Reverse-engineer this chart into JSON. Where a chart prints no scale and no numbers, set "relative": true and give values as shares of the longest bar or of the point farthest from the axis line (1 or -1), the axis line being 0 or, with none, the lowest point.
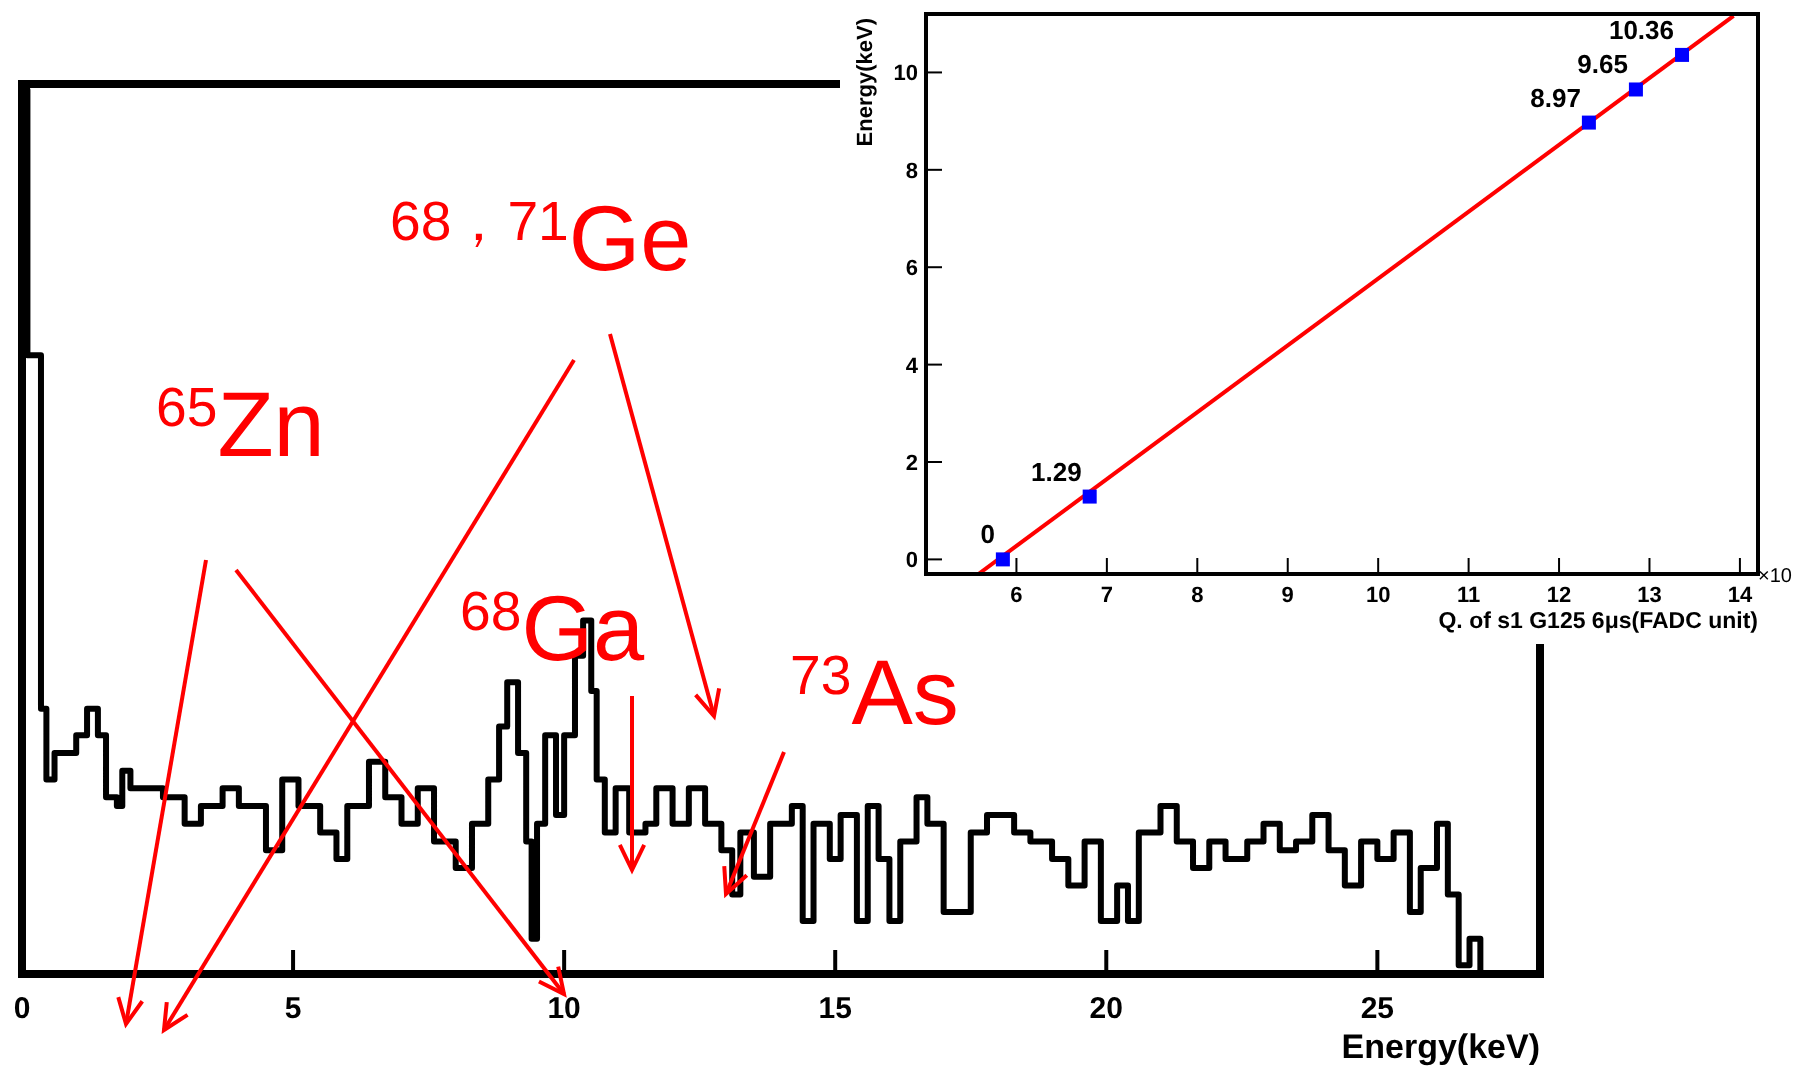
{
  "chart_data": [
    {
      "type": "step",
      "relative": true,
      "xlabel": "Energy(keV)",
      "xlim": [
        0,
        28
      ],
      "xticks": [
        0,
        5,
        10,
        15,
        20,
        25
      ],
      "color": "#000000",
      "annotations": [
        "$^{68，71}$Ge",
        "$^{65}$Zn",
        "$^{68}$Ga",
        "$^{73}$As"
      ],
      "x": [
        0,
        0.1,
        0.35,
        0.45,
        0.6,
        0.9,
        1.0,
        1.2,
        1.4,
        1.55,
        1.75,
        1.85,
        2.0,
        2.6,
        3.0,
        3.3,
        3.7,
        4.0,
        4.5,
        4.8,
        5.1,
        5.5,
        5.8,
        6.0,
        6.4,
        6.7,
        7.0,
        7.3,
        7.6,
        8.0,
        8.3,
        8.6,
        8.8,
        8.95,
        9.15,
        9.3,
        9.4,
        9.5,
        9.65,
        9.85,
        10.0,
        10.2,
        10.35,
        10.5,
        10.6,
        10.75,
        10.95,
        11.2,
        11.5,
        11.7,
        12.0,
        12.3,
        12.6,
        12.9,
        13.1,
        13.25,
        13.5,
        13.8,
        14.2,
        14.4,
        14.6,
        14.9,
        15.1,
        15.4,
        15.6,
        15.8,
        16.0,
        16.2,
        16.5,
        16.7,
        17.0,
        17.3,
        17.5,
        17.8,
        18.1,
        18.3,
        18.6,
        19.0,
        19.3,
        19.6,
        19.9,
        20.2,
        20.4,
        20.6,
        21.0,
        21.3,
        21.6,
        21.9,
        22.2,
        22.6,
        22.9,
        23.2,
        23.5,
        23.8,
        24.1,
        24.4,
        24.7,
        25.0,
        25.3,
        25.6,
        25.8,
        26.1,
        26.3,
        26.5,
        26.7,
        26.9,
        28
      ],
      "values": [
        1.0,
        0.7,
        0.3,
        0.22,
        0.25,
        0.25,
        0.27,
        0.3,
        0.27,
        0.2,
        0.19,
        0.23,
        0.21,
        0.2,
        0.17,
        0.19,
        0.21,
        0.19,
        0.14,
        0.22,
        0.19,
        0.16,
        0.13,
        0.19,
        0.24,
        0.2,
        0.17,
        0.21,
        0.15,
        0.12,
        0.17,
        0.22,
        0.28,
        0.33,
        0.25,
        0.15,
        0.04,
        0.17,
        0.27,
        0.18,
        0.27,
        0.36,
        0.4,
        0.32,
        0.22,
        0.16,
        0.21,
        0.16,
        0.17,
        0.21,
        0.17,
        0.21,
        0.17,
        0.14,
        0.09,
        0.16,
        0.11,
        0.17,
        0.19,
        0.06,
        0.17,
        0.13,
        0.18,
        0.06,
        0.19,
        0.13,
        0.06,
        0.15,
        0.2,
        0.17,
        0.07,
        0.07,
        0.16,
        0.18,
        0.18,
        0.16,
        0.15,
        0.13,
        0.1,
        0.15,
        0.06,
        0.1,
        0.06,
        0.16,
        0.19,
        0.15,
        0.12,
        0.15,
        0.13,
        0.15,
        0.17,
        0.14,
        0.15,
        0.18,
        0.14,
        0.1,
        0.15,
        0.13,
        0.16,
        0.07,
        0.12,
        0.17,
        0.09,
        0.01,
        0.04,
        0,
        0
      ]
    },
    {
      "type": "scatter",
      "xlabel": "Q. of s1 G125 6μs(FADC unit)",
      "ylabel": "Energy(keV)",
      "xlim": [
        5,
        14.2
      ],
      "ylim": [
        -0.3,
        11.2
      ],
      "xticks": [
        6,
        7,
        8,
        9,
        10,
        11,
        12,
        13,
        14
      ],
      "yticks": [
        0,
        2,
        4,
        6,
        8,
        10
      ],
      "annotations": [
        "×10"
      ],
      "series": [
        {
          "type": "line",
          "color": "#ff0000",
          "x": [
            5.58,
            13.93
          ],
          "values": [
            -0.3,
            11.16
          ]
        },
        {
          "type": "scatter",
          "color": "#0000ff",
          "marker": "square",
          "x": [
            5.85,
            6.81,
            12.33,
            12.85,
            13.36
          ],
          "values": [
            0,
            1.29,
            8.97,
            9.65,
            10.36
          ],
          "value_labels": [
            "0",
            "1.29",
            "8.97",
            "9.65",
            "10.36"
          ]
        }
      ]
    }
  ]
}
